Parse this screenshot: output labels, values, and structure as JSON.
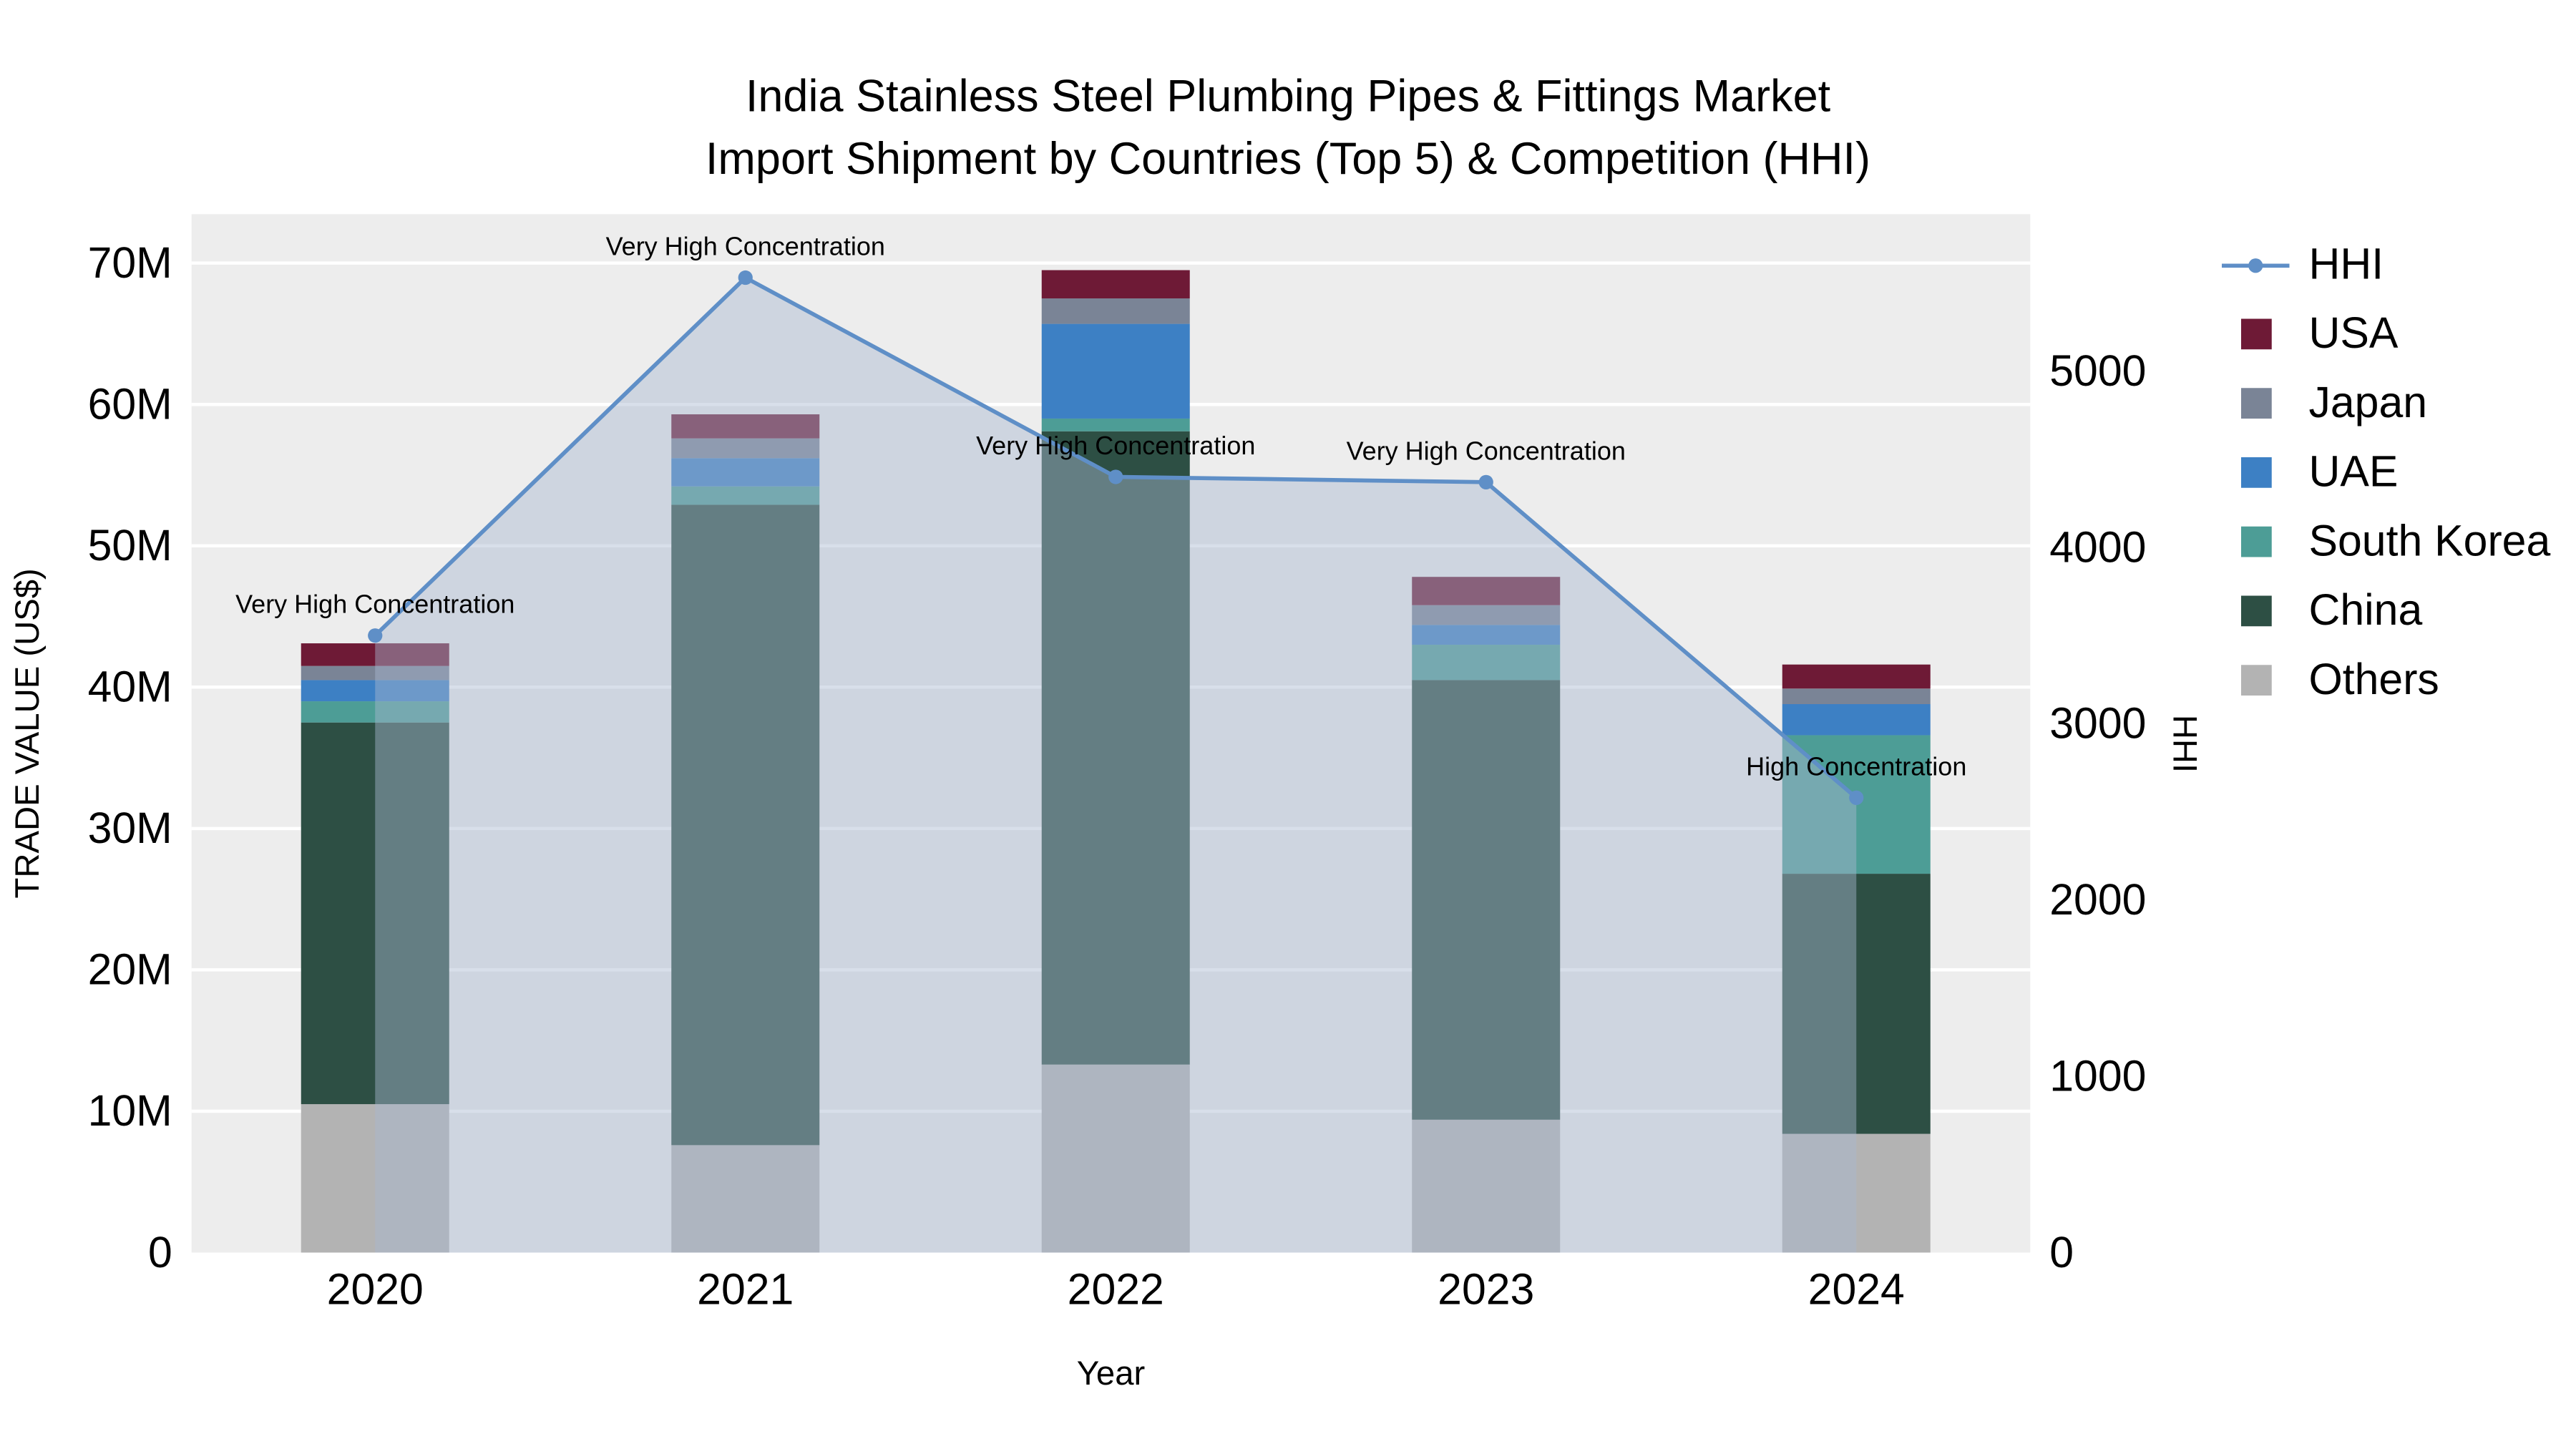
{
  "chart_data": {
    "type": "bar",
    "stacked": true,
    "overlay_line": true,
    "title": "India Stainless Steel Plumbing Pipes & Fittings Market",
    "subtitle": "Import Shipment by Countries (Top 5) & Competition (HHI)",
    "categories": [
      "2020",
      "2021",
      "2022",
      "2023",
      "2024"
    ],
    "value_unit": "M US$",
    "series": [
      {
        "name": "Others",
        "color": "#b3b3b3",
        "values": [
          10.5,
          7.6,
          13.3,
          9.4,
          8.4
        ]
      },
      {
        "name": "China",
        "color": "#2d4f44",
        "values": [
          27.0,
          45.3,
          44.8,
          31.1,
          18.4
        ]
      },
      {
        "name": "South Korea",
        "color": "#4d9d96",
        "values": [
          1.5,
          1.3,
          0.9,
          2.5,
          9.8
        ]
      },
      {
        "name": "UAE",
        "color": "#3d80c4",
        "values": [
          1.5,
          2.0,
          6.7,
          1.4,
          2.2
        ]
      },
      {
        "name": "Japan",
        "color": "#7a8496",
        "values": [
          1.0,
          1.4,
          1.8,
          1.4,
          1.1
        ]
      },
      {
        "name": "USA",
        "color": "#6e1a36",
        "values": [
          1.6,
          1.7,
          2.0,
          2.0,
          1.7
        ]
      }
    ],
    "bar_totals": [
      43.1,
      59.3,
      69.5,
      47.8,
      41.6
    ],
    "line_series": {
      "name": "HHI",
      "color": "#5f8fc7",
      "fill_color": "rgba(168,185,208,0.45)",
      "values": [
        3500,
        5530,
        4400,
        4370,
        2580
      ]
    },
    "annotations": [
      {
        "x": "2020",
        "text": "Very High Concentration"
      },
      {
        "x": "2021",
        "text": "Very High Concentration"
      },
      {
        "x": "2022",
        "text": "Very High Concentration"
      },
      {
        "x": "2023",
        "text": "Very High Concentration"
      },
      {
        "x": "2024",
        "text": "High Concentration"
      }
    ],
    "x_axis": {
      "label": "Year"
    },
    "y_left": {
      "label": "TRADE VALUE (US$)",
      "ticks": [
        "0",
        "10M",
        "20M",
        "30M",
        "40M",
        "50M",
        "60M",
        "70M"
      ],
      "tick_values": [
        0,
        10,
        20,
        30,
        40,
        50,
        60,
        70
      ],
      "range": [
        0,
        73.5
      ]
    },
    "y_right": {
      "label": "HHI",
      "ticks": [
        "0",
        "1000",
        "2000",
        "3000",
        "4000",
        "5000"
      ],
      "tick_values": [
        0,
        1000,
        2000,
        3000,
        4000,
        5000
      ],
      "range": [
        0,
        5890
      ]
    },
    "plot_bgcolor": "#ededed",
    "grid_color": "#ffffff",
    "legend_position": "right"
  },
  "legend": {
    "items": [
      {
        "label": "HHI",
        "swatch": "line",
        "color": "#5f8fc7"
      },
      {
        "label": "USA",
        "swatch": "square",
        "color": "#6e1a36"
      },
      {
        "label": "Japan",
        "swatch": "square",
        "color": "#7a8496"
      },
      {
        "label": "UAE",
        "swatch": "square",
        "color": "#3d80c4"
      },
      {
        "label": "South Korea",
        "swatch": "square",
        "color": "#4d9d96"
      },
      {
        "label": "China",
        "swatch": "square",
        "color": "#2d4f44"
      },
      {
        "label": "Others",
        "swatch": "square",
        "color": "#b3b3b3"
      }
    ]
  }
}
